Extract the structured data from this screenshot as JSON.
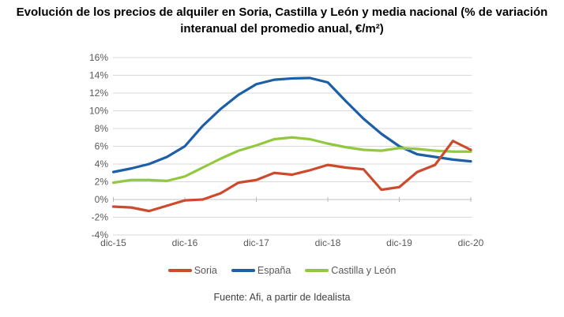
{
  "title": "Evolución de los precios de alquiler en Soria, Castilla y León y media nacional (% de variación interanual del promedio anual, €/m²)",
  "source_note": "Fuente: Afi, a partir de Idealista",
  "chart_data": {
    "type": "line",
    "x": [
      "dic-15",
      "mar-16",
      "jun-16",
      "sep-16",
      "dic-16",
      "mar-17",
      "jun-17",
      "sep-17",
      "dic-17",
      "mar-18",
      "jun-18",
      "sep-18",
      "dic-18",
      "mar-19",
      "jun-19",
      "sep-19",
      "dic-19",
      "mar-20",
      "jun-20",
      "sep-20",
      "dic-20"
    ],
    "x_axis_tick_labels": [
      "dic-15",
      "dic-16",
      "dic-17",
      "dic-18",
      "dic-19",
      "dic-20"
    ],
    "y_ticks": [
      "16%",
      "14%",
      "12%",
      "10%",
      "8%",
      "6%",
      "4%",
      "2%",
      "0%",
      "-2%",
      "-4%"
    ],
    "ylim": [
      -4,
      16
    ],
    "y_step": 2,
    "grid": true,
    "legend_position": "bottom",
    "series": [
      {
        "name": "Soria",
        "color": "#cd4a2d",
        "values": [
          -0.8,
          -0.9,
          -1.3,
          -0.7,
          -0.1,
          0.0,
          0.7,
          1.9,
          2.2,
          3.0,
          2.8,
          3.3,
          3.9,
          3.6,
          3.4,
          1.1,
          1.4,
          3.1,
          3.9,
          6.6,
          5.6
        ]
      },
      {
        "name": "España",
        "color": "#1c5fa6",
        "values": [
          3.1,
          3.5,
          4.0,
          4.8,
          6.0,
          8.3,
          10.2,
          11.8,
          13.0,
          13.5,
          13.65,
          13.7,
          13.2,
          11.1,
          9.1,
          7.4,
          6.0,
          5.1,
          4.8,
          4.5,
          4.3
        ]
      },
      {
        "name": "Castilla y León",
        "color": "#92c83e",
        "values": [
          1.9,
          2.2,
          2.2,
          2.1,
          2.6,
          3.6,
          4.6,
          5.5,
          6.1,
          6.8,
          7.0,
          6.8,
          6.3,
          5.9,
          5.6,
          5.5,
          5.8,
          5.7,
          5.5,
          5.4,
          5.4
        ]
      }
    ],
    "colors": {
      "grid": "#d9d9d9",
      "zero_axis": "#c2c2c2",
      "axis_tick": "#b9b9b9",
      "tick_text": "#595959"
    }
  }
}
